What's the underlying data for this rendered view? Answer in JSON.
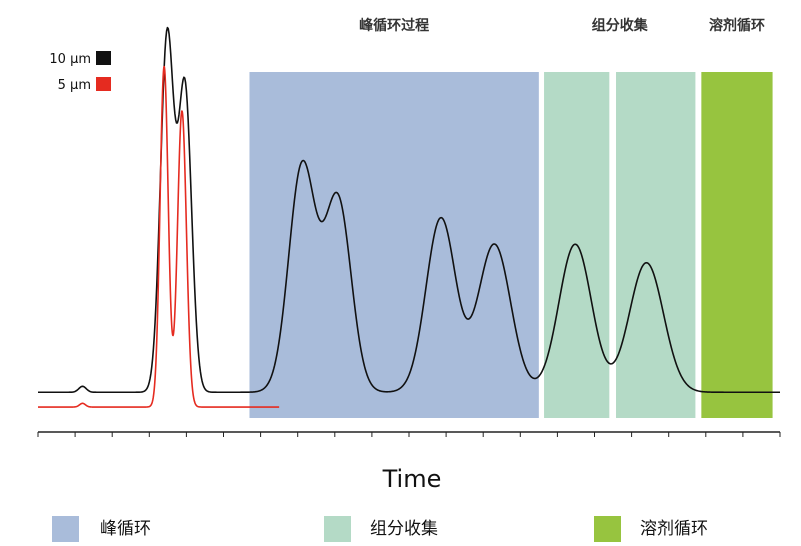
{
  "chart_data": {
    "type": "line",
    "xlabel": "Time",
    "ylabel": "",
    "title": "",
    "xlim": [
      0,
      100
    ],
    "ylim": [
      0,
      100
    ],
    "grid": false,
    "x_ticks": [
      0,
      5,
      10,
      15,
      20,
      25,
      30,
      35,
      40,
      45,
      50,
      55,
      60,
      65,
      70,
      75,
      80,
      85,
      90,
      95,
      100
    ],
    "phases": [
      {
        "name": "峰循环",
        "label": "峰循环过程",
        "color": "#a9bcda",
        "ranges": [
          [
            28.5,
            67.5
          ]
        ]
      },
      {
        "name": "组分收集",
        "label": "组分收集",
        "color": "#b4dac6",
        "ranges": [
          [
            68.2,
            77.0
          ],
          [
            77.9,
            88.6
          ]
        ]
      },
      {
        "name": "溶剂循环",
        "label": "溶剂循环",
        "color": "#97c43f",
        "ranges": [
          [
            89.4,
            99.0
          ]
        ]
      }
    ],
    "series": [
      {
        "name": "10 µm",
        "color": "#111111",
        "baseline": 4.8,
        "x_range": [
          0,
          100
        ],
        "peaks": [
          {
            "x": 6.0,
            "height": 1.6,
            "width": 0.5
          },
          {
            "x": 17.4,
            "height": 96,
            "width": 0.9
          },
          {
            "x": 19.8,
            "height": 82,
            "width": 0.9
          },
          {
            "x": 35.6,
            "height": 61,
            "width": 1.8
          },
          {
            "x": 40.4,
            "height": 52,
            "width": 1.8
          },
          {
            "x": 54.3,
            "height": 47,
            "width": 2.0
          },
          {
            "x": 61.5,
            "height": 40,
            "width": 2.2
          },
          {
            "x": 72.4,
            "height": 40,
            "width": 2.2
          },
          {
            "x": 82.0,
            "height": 35,
            "width": 2.3
          }
        ]
      },
      {
        "name": "5 µm",
        "color": "#e52b20",
        "baseline": 0.8,
        "x_range": [
          0,
          32.5
        ],
        "peaks": [
          {
            "x": 6.0,
            "height": 1.0,
            "width": 0.4
          },
          {
            "x": 17.0,
            "height": 92,
            "width": 0.55
          },
          {
            "x": 19.4,
            "height": 80,
            "width": 0.6
          }
        ]
      }
    ],
    "legend": {
      "placement": "top-left",
      "entries": [
        "10 µm",
        "5 µm"
      ]
    },
    "bottom_legend": [
      "峰循环",
      "组分收集",
      "溶剂循环"
    ]
  }
}
